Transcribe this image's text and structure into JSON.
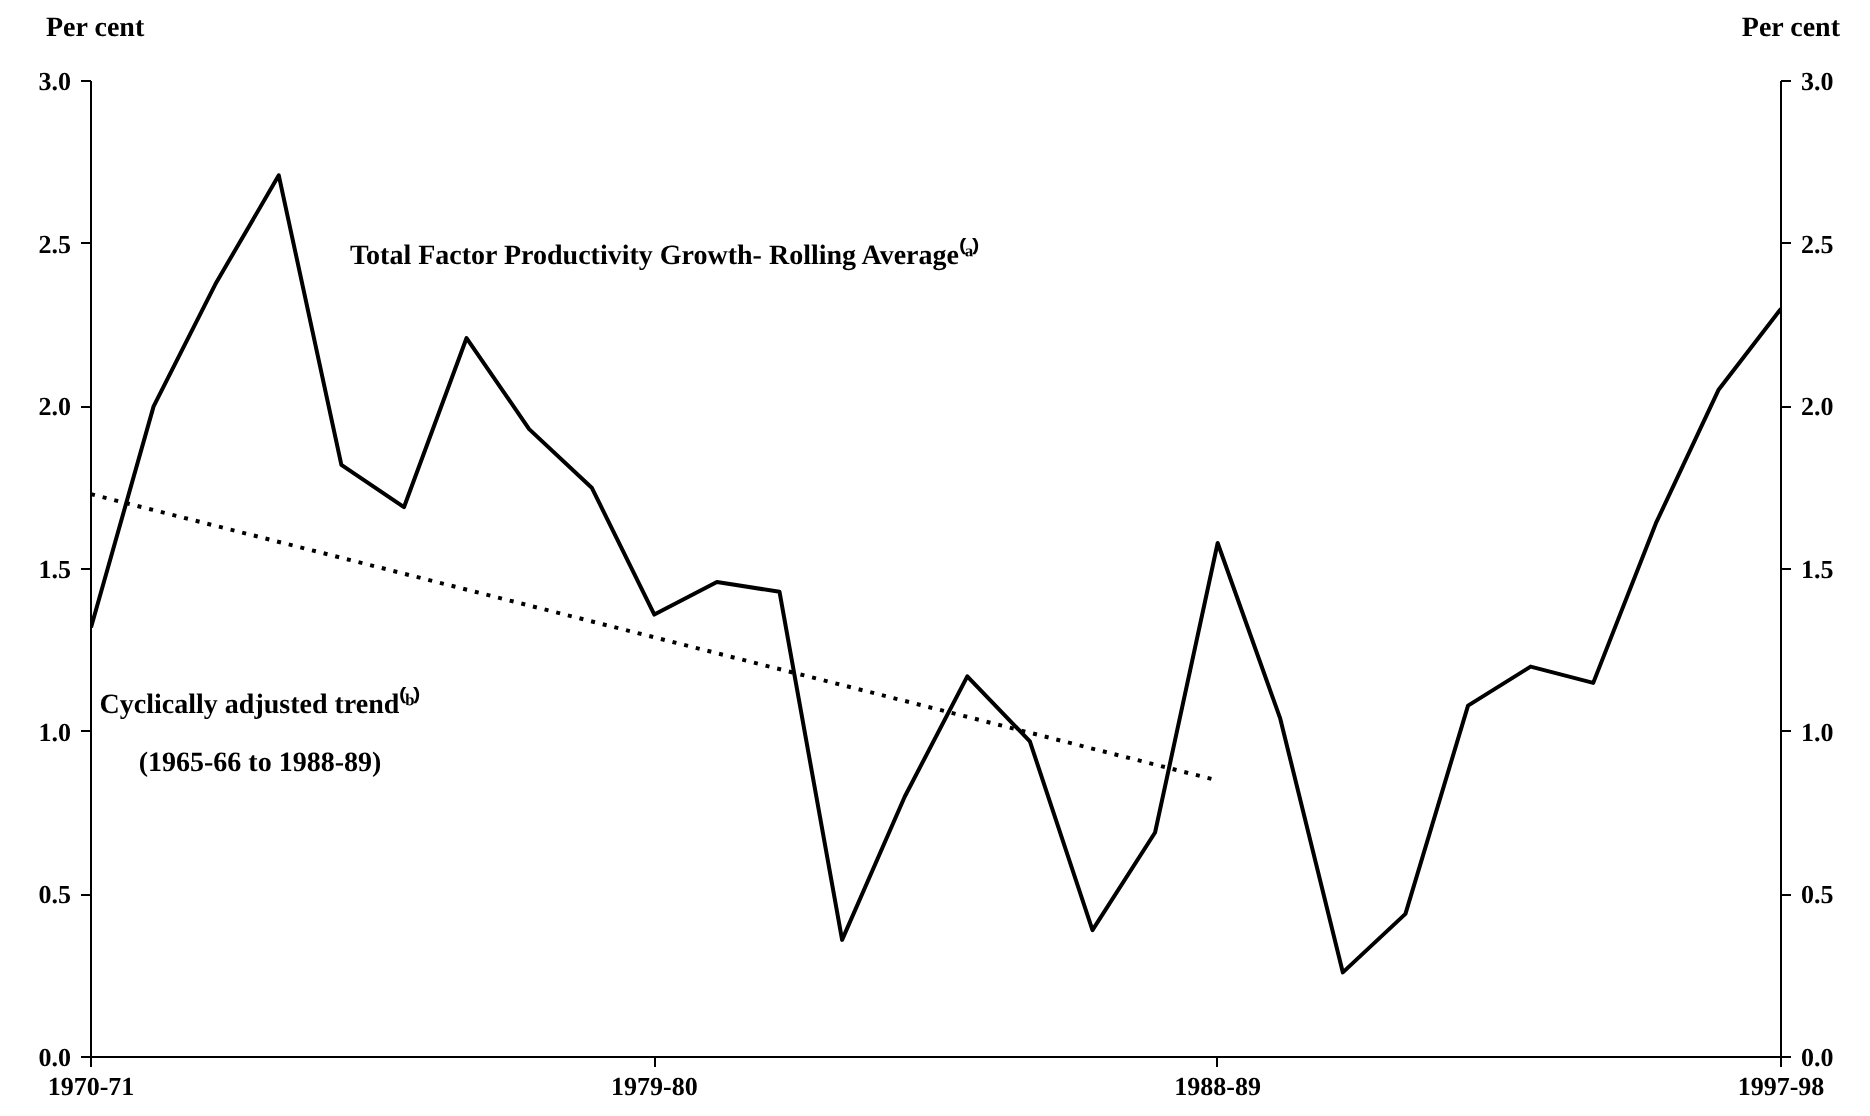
{
  "chart_data": {
    "type": "line",
    "ylabel": "Per cent",
    "y2label": "Per cent",
    "categories": [
      "1970-71",
      null,
      null,
      null,
      null,
      null,
      null,
      null,
      null,
      "1979-80",
      null,
      null,
      null,
      null,
      null,
      null,
      null,
      null,
      "1988-89",
      null,
      null,
      null,
      null,
      null,
      null,
      null,
      null,
      "1997-98"
    ],
    "series": [
      {
        "color": "#000000",
        "line_style": "solid",
        "values": [
          1.32,
          2.0,
          2.38,
          2.71,
          1.82,
          1.69,
          2.21,
          1.93,
          1.75,
          1.36,
          1.46,
          1.43,
          0.36,
          0.8,
          1.17,
          0.97,
          0.39,
          0.69,
          1.58,
          1.04,
          0.26,
          0.44,
          1.08,
          1.2,
          1.15,
          1.64,
          2.05,
          2.3
        ]
      },
      {
        "type": "line",
        "color": "#000000",
        "line_style": "dotted",
        "values": [
          1.73,
          null,
          null,
          null,
          null,
          null,
          null,
          null,
          null,
          null,
          null,
          null,
          null,
          null,
          null,
          null,
          null,
          null,
          0.85,
          null,
          null,
          null,
          null,
          null,
          null,
          null,
          null,
          null
        ]
      }
    ],
    "ylim": [
      0,
      3
    ],
    "yticks": [
      {
        "value": 0,
        "label": "0.0"
      },
      {
        "value": 0.5,
        "label": "0.5"
      },
      {
        "value": 1,
        "label": "1.0"
      },
      {
        "value": 1.5,
        "label": "1.5"
      },
      {
        "value": 2,
        "label": "2.0"
      },
      {
        "value": 2.5,
        "label": "2.5"
      },
      {
        "value": 3,
        "label": "3.0"
      }
    ],
    "y2lim": [
      0,
      3
    ],
    "y2ticks": [
      {
        "value": 0,
        "label": "0.0"
      },
      {
        "value": 0.5,
        "label": "0.5"
      },
      {
        "value": 1,
        "label": "1.0"
      },
      {
        "value": 1.5,
        "label": "1.5"
      },
      {
        "value": 2,
        "label": "2.0"
      },
      {
        "value": 2.5,
        "label": "2.5"
      },
      {
        "value": 3,
        "label": "3.0"
      }
    ],
    "annotations": [
      "Total Factor Productivity Growth- Rolling Average⁽ᵃ⁾",
      "Cyclically adjusted trend⁽ᵇ⁾",
      "(1965-66 to 1988-89)"
    ],
    "grid": false
  }
}
